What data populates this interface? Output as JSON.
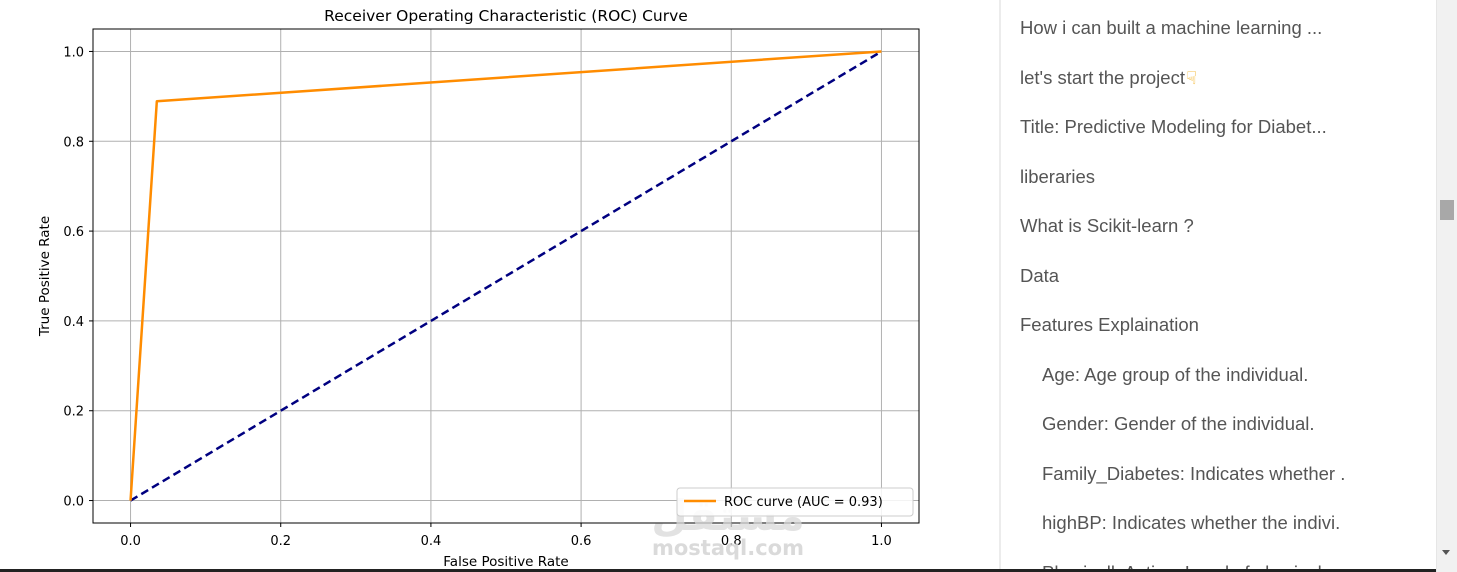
{
  "chart_data": {
    "type": "line",
    "title": "Receiver Operating Characteristic (ROC) Curve",
    "xlabel": "False Positive Rate",
    "ylabel": "True Positive Rate",
    "xlim": [
      -0.05,
      1.05
    ],
    "ylim": [
      -0.05,
      1.05
    ],
    "xticks": [
      0.0,
      0.2,
      0.4,
      0.6,
      0.8,
      1.0
    ],
    "yticks": [
      0.0,
      0.2,
      0.4,
      0.6,
      0.8,
      1.0
    ],
    "xtick_labels": [
      "0.0",
      "0.2",
      "0.4",
      "0.6",
      "0.8",
      "1.0"
    ],
    "ytick_labels": [
      "0.0",
      "0.2",
      "0.4",
      "0.6",
      "0.8",
      "1.0"
    ],
    "grid": true,
    "legend_position": "lower-right",
    "series": [
      {
        "name": "ROC curve (AUC = 0.93)",
        "color": "#ff8c00",
        "style": "solid",
        "x": [
          0.0,
          0.035,
          1.0
        ],
        "y": [
          0.0,
          0.889,
          1.0
        ]
      },
      {
        "color": "#000080",
        "style": "dashed",
        "x": [
          0.0,
          1.0
        ],
        "y": [
          0.0,
          1.0
        ]
      }
    ]
  },
  "watermark": {
    "arabic": "مستقل",
    "latin": "mostaql.com"
  },
  "toc": {
    "items": [
      {
        "label": "How i can built a machine learning ...",
        "level": 1
      },
      {
        "label": "let's start the project",
        "level": 1,
        "icon": "pointing-hand-icon"
      },
      {
        "label": "Title: Predictive Modeling for Diabet...",
        "level": 1
      },
      {
        "label": "liberaries",
        "level": 1
      },
      {
        "label": "What is Scikit-learn ?",
        "level": 1
      },
      {
        "label": "Data",
        "level": 1
      },
      {
        "label": "Features Explaination",
        "level": 1
      },
      {
        "label": "Age: Age group of the individual.",
        "level": 2
      },
      {
        "label": "Gender: Gender of the individual.",
        "level": 2
      },
      {
        "label": "Family_Diabetes: Indicates whether .",
        "level": 2
      },
      {
        "label": "highBP: Indicates whether the indivi.",
        "level": 2
      },
      {
        "label": "PhysicallyActive: Level of physical a...",
        "level": 2
      }
    ]
  }
}
